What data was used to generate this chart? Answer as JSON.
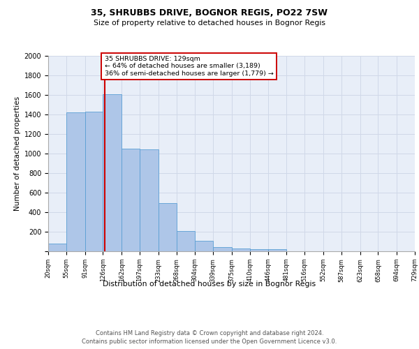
{
  "title1": "35, SHRUBBS DRIVE, BOGNOR REGIS, PO22 7SW",
  "title2": "Size of property relative to detached houses in Bognor Regis",
  "xlabel": "Distribution of detached houses by size in Bognor Regis",
  "ylabel": "Number of detached properties",
  "bar_values": [
    80,
    1420,
    1430,
    1610,
    1050,
    1040,
    490,
    205,
    105,
    40,
    30,
    25,
    20,
    0,
    0,
    0,
    0,
    0,
    0,
    0
  ],
  "bin_edges": [
    20,
    55,
    91,
    126,
    162,
    197,
    233,
    268,
    304,
    339,
    375,
    410,
    446,
    481,
    516,
    552,
    587,
    623,
    658,
    694,
    729
  ],
  "tick_labels": [
    "20sqm",
    "55sqm",
    "91sqm",
    "126sqm",
    "162sqm",
    "197sqm",
    "233sqm",
    "268sqm",
    "304sqm",
    "339sqm",
    "375sqm",
    "410sqm",
    "446sqm",
    "481sqm",
    "516sqm",
    "552sqm",
    "587sqm",
    "623sqm",
    "658sqm",
    "694sqm",
    "729sqm"
  ],
  "bar_color": "#aec6e8",
  "bar_edge_color": "#5a9fd4",
  "grid_color": "#d0d8e8",
  "bg_color": "#e8eef8",
  "red_line_x": 129,
  "annotation_text": "35 SHRUBBS DRIVE: 129sqm\n← 64% of detached houses are smaller (3,189)\n36% of semi-detached houses are larger (1,779) →",
  "annotation_box_color": "#ffffff",
  "annotation_box_edge": "#cc0000",
  "ylim": [
    0,
    2000
  ],
  "yticks": [
    0,
    200,
    400,
    600,
    800,
    1000,
    1200,
    1400,
    1600,
    1800,
    2000
  ],
  "footer1": "Contains HM Land Registry data © Crown copyright and database right 2024.",
  "footer2": "Contains public sector information licensed under the Open Government Licence v3.0."
}
